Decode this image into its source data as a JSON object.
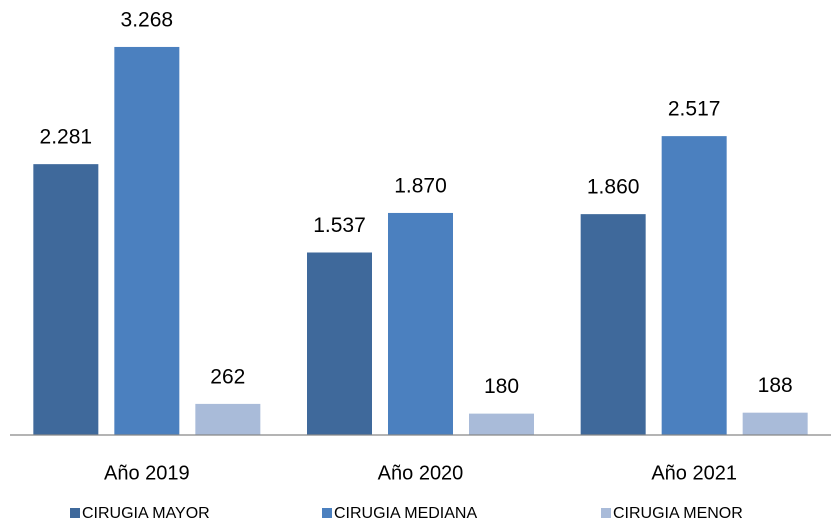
{
  "chart_data": {
    "type": "bar",
    "categories": [
      "Año 2019",
      "Año 2020",
      "Año 2021"
    ],
    "series": [
      {
        "name": "CIRUGIA MAYOR",
        "color": "#3f699b",
        "values": [
          2281,
          1537,
          1860
        ],
        "value_labels": [
          "2.281",
          "1.537",
          "1.860"
        ]
      },
      {
        "name": "CIRUGIA MEDIANA",
        "color": "#4b80bf",
        "values": [
          3268,
          1870,
          2517
        ],
        "value_labels": [
          "3.268",
          "1.870",
          "2.517"
        ]
      },
      {
        "name": "CIRUGIA MENOR",
        "color": "#a9bbd9",
        "values": [
          262,
          180,
          188
        ],
        "value_labels": [
          "262",
          "180",
          "188"
        ]
      }
    ],
    "ylim": [
      0,
      3500
    ]
  }
}
